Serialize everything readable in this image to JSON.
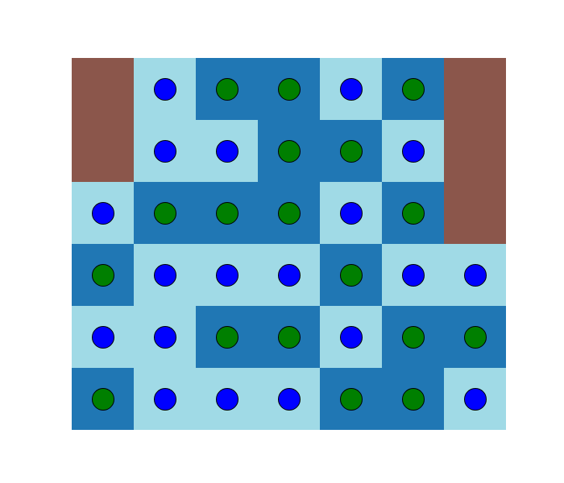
{
  "colors": {
    "background": "#ffffff",
    "blocked": "#8b564b",
    "light": "#a0dae6",
    "dark": "#2077b4",
    "blue_piece": "#0000ff",
    "green_piece": "#007f00",
    "piece_outline": "#000000"
  },
  "legend": {
    "X": "blocked",
    "L": "light",
    "D": "dark",
    "b": "blue_piece",
    "g": "green_piece",
    "-": "none"
  },
  "board": {
    "cols": 7,
    "rows": 6,
    "cells": [
      [
        "X",
        "L",
        "D",
        "D",
        "L",
        "D",
        "X"
      ],
      [
        "X",
        "L",
        "L",
        "D",
        "D",
        "L",
        "X"
      ],
      [
        "L",
        "D",
        "D",
        "D",
        "L",
        "D",
        "X"
      ],
      [
        "D",
        "L",
        "L",
        "L",
        "D",
        "L",
        "L"
      ],
      [
        "L",
        "L",
        "D",
        "D",
        "L",
        "D",
        "D"
      ],
      [
        "D",
        "L",
        "L",
        "L",
        "D",
        "D",
        "L"
      ]
    ],
    "pieces": [
      [
        "-",
        "b",
        "g",
        "g",
        "b",
        "g",
        "-"
      ],
      [
        "-",
        "b",
        "b",
        "g",
        "g",
        "b",
        "-"
      ],
      [
        "b",
        "g",
        "g",
        "g",
        "b",
        "g",
        "-"
      ],
      [
        "g",
        "b",
        "b",
        "b",
        "g",
        "b",
        "b"
      ],
      [
        "b",
        "b",
        "g",
        "g",
        "b",
        "g",
        "g"
      ],
      [
        "g",
        "b",
        "b",
        "b",
        "g",
        "g",
        "b"
      ]
    ]
  }
}
